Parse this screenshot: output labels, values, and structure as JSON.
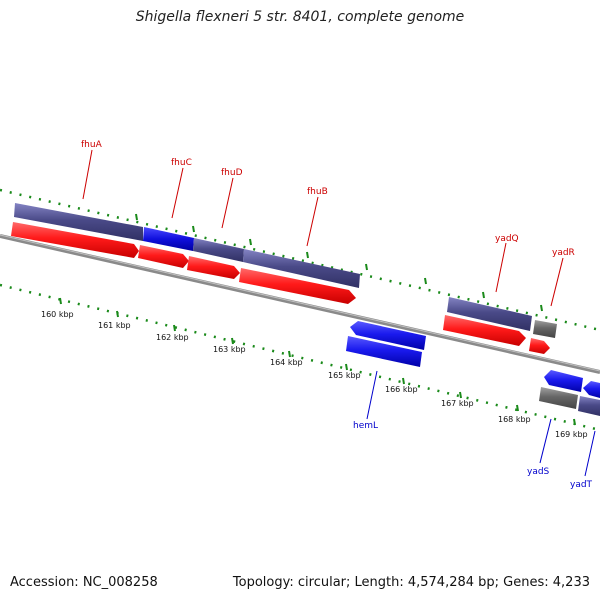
{
  "title": "Shigella flexneri 5 str. 8401, complete genome",
  "accession_label": "Accession: NC_008258",
  "topology_label": "Topology: circular; Length: 4,574,284 bp; Genes: 4,233",
  "colors": {
    "forward_cds": "#ff1a1a",
    "reverse_cds": "#1a1aee",
    "cog_bar": "#4a4a88",
    "other_feature": "#666666",
    "backbone": "#8a8a8a",
    "ticks": "#1a8a1a",
    "forward_label": "#cc0000",
    "reverse_label": "#0000cc"
  },
  "scale_labels": [
    "160 kbp",
    "161 kbp",
    "162 kbp",
    "163 kbp",
    "164 kbp",
    "165 kbp",
    "166 kbp",
    "167 kbp",
    "168 kbp",
    "169 kbp"
  ],
  "forward_genes": [
    "fhuA",
    "fhuC",
    "fhuD",
    "fhuB",
    "yadQ",
    "yadR"
  ],
  "reverse_genes": [
    "hemL",
    "yadS",
    "yadT"
  ]
}
